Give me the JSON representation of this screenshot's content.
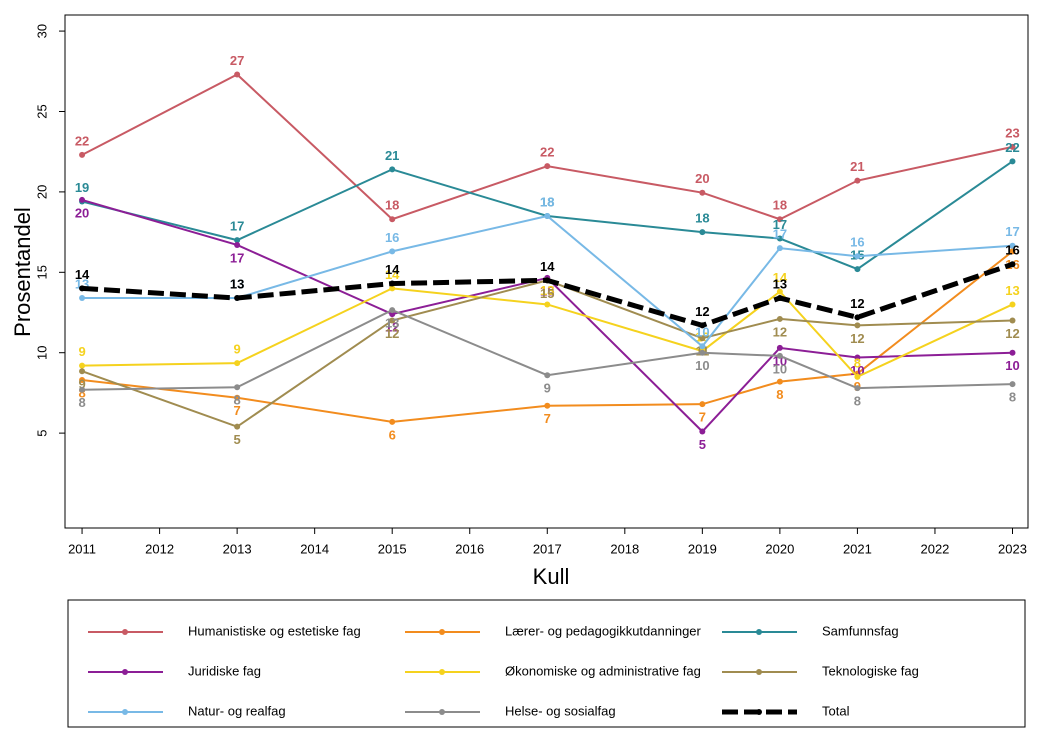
{
  "chart_data": {
    "type": "line",
    "x_label": "Kull",
    "y_label": "Prosentandel",
    "x": [
      2011,
      2013,
      2015,
      2017,
      2019,
      2020,
      2021,
      2023
    ],
    "xlim": [
      2010.78,
      2023.2
    ],
    "xticks": [
      2011,
      2012,
      2013,
      2014,
      2015,
      2016,
      2017,
      2018,
      2019,
      2020,
      2021,
      2022,
      2023
    ],
    "ylim": [
      -0.9,
      31
    ],
    "yticks": [
      5,
      10,
      15,
      20,
      25,
      30
    ],
    "grid": false,
    "legend": "bottom",
    "series": [
      {
        "name": "Humanistiske og estetiske fag",
        "color": "#c85a64",
        "values": [
          22.3,
          27.3,
          18.3,
          21.6,
          19.95,
          18.3,
          20.7,
          22.8
        ],
        "value_labels": [
          "22",
          "27",
          "18",
          "22",
          "20",
          "18",
          "21",
          "23"
        ]
      },
      {
        "name": "Lærer- og pedagogikkutdanninger",
        "color": "#f28c1e",
        "values": [
          8.3,
          7.2,
          5.7,
          6.7,
          6.8,
          8.2,
          8.7,
          16.3
        ],
        "value_labels": [
          "8",
          "7",
          "6",
          "7",
          "7",
          "8",
          "9",
          "16"
        ]
      },
      {
        "name": "Samfunnsfag",
        "color": "#2a8a96",
        "values": [
          19.4,
          17.0,
          21.4,
          18.5,
          17.5,
          17.1,
          15.2,
          21.9
        ],
        "value_labels": [
          "19",
          "17",
          "21",
          "18",
          "18",
          "17",
          "15",
          "22"
        ]
      },
      {
        "name": "Juridiske fag",
        "color": "#8c1e96",
        "values": [
          19.5,
          16.7,
          12.4,
          14.65,
          5.1,
          10.3,
          9.7,
          10.0
        ],
        "value_labels": [
          "20",
          "17",
          "12",
          "15",
          "5",
          "10",
          "10",
          "10"
        ]
      },
      {
        "name": "Økonomiske og administrative fag",
        "color": "#f5d21e",
        "values": [
          9.2,
          9.35,
          14.0,
          13.0,
          10.1,
          13.8,
          8.5,
          13.0
        ],
        "value_labels": [
          "9",
          "9",
          "14",
          "13",
          "10",
          "14",
          "8",
          "13"
        ]
      },
      {
        "name": "Teknologiske fag",
        "color": "#a08c50",
        "values": [
          8.85,
          5.4,
          12.0,
          14.5,
          10.9,
          12.1,
          11.7,
          12.0
        ],
        "value_labels": [
          "9",
          "5",
          "12",
          "15",
          "11",
          "12",
          "12",
          "12"
        ]
      },
      {
        "name": "Natur- og realfag",
        "color": "#78b9e6",
        "values": [
          13.4,
          13.4,
          16.3,
          18.5,
          10.4,
          16.5,
          16.0,
          16.65
        ],
        "value_labels": [
          "13",
          "13",
          "16",
          "18",
          "10",
          "17",
          "16",
          "17"
        ]
      },
      {
        "name": "Helse- og sosialfag",
        "color": "#8c8c8c",
        "values": [
          7.7,
          7.85,
          12.65,
          8.6,
          10.0,
          9.8,
          7.8,
          8.05
        ],
        "value_labels": [
          "8",
          "8",
          "13",
          "9",
          "10",
          "10",
          "8",
          "8"
        ]
      },
      {
        "name": "Total",
        "color": "#000000",
        "dashed": true,
        "values": [
          14.0,
          13.4,
          14.3,
          14.5,
          11.7,
          13.4,
          12.2,
          15.5
        ],
        "value_labels": [
          "14",
          "13",
          "14",
          "14",
          "12",
          "13",
          "12",
          "16"
        ]
      }
    ]
  }
}
